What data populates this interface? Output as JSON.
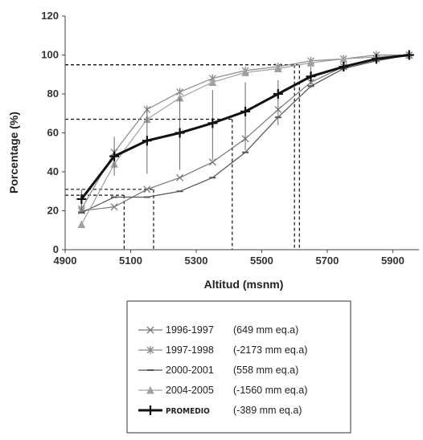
{
  "chart_data": {
    "type": "line",
    "xlabel": "Altitud (msnm)",
    "ylabel": "Porcentage (%)",
    "xlim": [
      4900,
      5980
    ],
    "ylim": [
      0,
      120
    ],
    "x_ticks": [
      "4900",
      "5100",
      "5300",
      "5500",
      "5700",
      "5900"
    ],
    "y_ticks": [
      "0",
      "20",
      "40",
      "60",
      "80",
      "100",
      "120"
    ],
    "grid": false,
    "legend_position": "bottom",
    "x": [
      4950,
      5050,
      5150,
      5250,
      5350,
      5450,
      5550,
      5650,
      5750,
      5850,
      5950
    ],
    "series": [
      {
        "name": "1996-1997",
        "note": "(649 mm eq.a)",
        "marker": "x",
        "color": "#777777",
        "values": [
          20,
          22,
          31,
          37,
          45,
          57,
          72,
          86,
          94,
          98,
          100
        ]
      },
      {
        "name": "1997-1998",
        "note": "(-2173 mm eq.a)",
        "marker": "star",
        "color": "#8a8a8a",
        "values": [
          21,
          50,
          72,
          81,
          88,
          92,
          94,
          97,
          98,
          100,
          100
        ]
      },
      {
        "name": "2000-2001",
        "note": "(558 mm eq.a)",
        "marker": "dash",
        "color": "#555555",
        "values": [
          19,
          27,
          27,
          30,
          37,
          50,
          68,
          84,
          93,
          97,
          100
        ]
      },
      {
        "name": "2004-2005",
        "note": "(-1560 mm eq.a)",
        "marker": "triangle",
        "color": "#a0a0a0",
        "values": [
          13,
          44,
          67,
          78,
          86,
          91,
          93,
          96,
          98,
          99,
          100
        ]
      },
      {
        "name": "PROMEDIO",
        "note": "(-389 mm eq.a)",
        "marker": "plus",
        "color": "#111111",
        "values": [
          26,
          48,
          56,
          60,
          65,
          71,
          80,
          89,
          94,
          98,
          100
        ],
        "error_low": [
          19,
          38,
          39,
          41,
          46,
          51,
          64,
          83,
          93,
          97,
          100
        ],
        "error_high": [
          31,
          58,
          73,
          78,
          82,
          86,
          87,
          94,
          96,
          99,
          100
        ]
      }
    ],
    "reference_lines": [
      {
        "y": 95,
        "x_end": 5600
      },
      {
        "y": 67,
        "x_end": 5410
      },
      {
        "y": 31,
        "x_end": 5170
      },
      {
        "y": 28,
        "x_end": 5080
      },
      {
        "y": 95,
        "x_end": 5615
      }
    ]
  }
}
